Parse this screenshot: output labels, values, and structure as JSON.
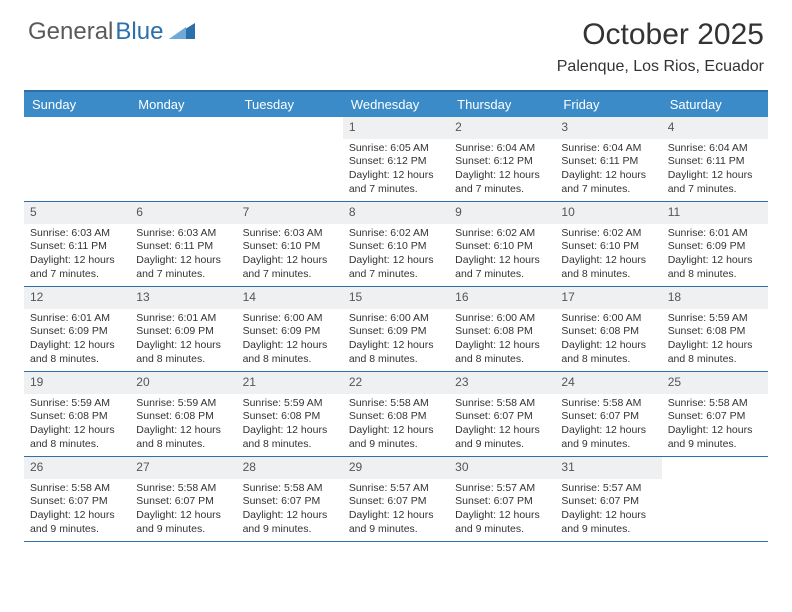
{
  "logo": {
    "text1": "General",
    "text2": "Blue"
  },
  "title": "October 2025",
  "location": "Palenque, Los Rios, Ecuador",
  "colors": {
    "header_bar": "#3b8bc8",
    "border": "#2b6fab",
    "daynum_bg": "#eef0f2",
    "text": "#333333",
    "logo_gray": "#5a5a5a",
    "logo_blue": "#2b6fab"
  },
  "day_headers": [
    "Sunday",
    "Monday",
    "Tuesday",
    "Wednesday",
    "Thursday",
    "Friday",
    "Saturday"
  ],
  "weeks": [
    [
      {
        "blank": true
      },
      {
        "blank": true
      },
      {
        "blank": true
      },
      {
        "n": "1",
        "sr": "6:05 AM",
        "ss": "6:12 PM",
        "dl": "12 hours and 7 minutes."
      },
      {
        "n": "2",
        "sr": "6:04 AM",
        "ss": "6:12 PM",
        "dl": "12 hours and 7 minutes."
      },
      {
        "n": "3",
        "sr": "6:04 AM",
        "ss": "6:11 PM",
        "dl": "12 hours and 7 minutes."
      },
      {
        "n": "4",
        "sr": "6:04 AM",
        "ss": "6:11 PM",
        "dl": "12 hours and 7 minutes."
      }
    ],
    [
      {
        "n": "5",
        "sr": "6:03 AM",
        "ss": "6:11 PM",
        "dl": "12 hours and 7 minutes."
      },
      {
        "n": "6",
        "sr": "6:03 AM",
        "ss": "6:11 PM",
        "dl": "12 hours and 7 minutes."
      },
      {
        "n": "7",
        "sr": "6:03 AM",
        "ss": "6:10 PM",
        "dl": "12 hours and 7 minutes."
      },
      {
        "n": "8",
        "sr": "6:02 AM",
        "ss": "6:10 PM",
        "dl": "12 hours and 7 minutes."
      },
      {
        "n": "9",
        "sr": "6:02 AM",
        "ss": "6:10 PM",
        "dl": "12 hours and 7 minutes."
      },
      {
        "n": "10",
        "sr": "6:02 AM",
        "ss": "6:10 PM",
        "dl": "12 hours and 8 minutes."
      },
      {
        "n": "11",
        "sr": "6:01 AM",
        "ss": "6:09 PM",
        "dl": "12 hours and 8 minutes."
      }
    ],
    [
      {
        "n": "12",
        "sr": "6:01 AM",
        "ss": "6:09 PM",
        "dl": "12 hours and 8 minutes."
      },
      {
        "n": "13",
        "sr": "6:01 AM",
        "ss": "6:09 PM",
        "dl": "12 hours and 8 minutes."
      },
      {
        "n": "14",
        "sr": "6:00 AM",
        "ss": "6:09 PM",
        "dl": "12 hours and 8 minutes."
      },
      {
        "n": "15",
        "sr": "6:00 AM",
        "ss": "6:09 PM",
        "dl": "12 hours and 8 minutes."
      },
      {
        "n": "16",
        "sr": "6:00 AM",
        "ss": "6:08 PM",
        "dl": "12 hours and 8 minutes."
      },
      {
        "n": "17",
        "sr": "6:00 AM",
        "ss": "6:08 PM",
        "dl": "12 hours and 8 minutes."
      },
      {
        "n": "18",
        "sr": "5:59 AM",
        "ss": "6:08 PM",
        "dl": "12 hours and 8 minutes."
      }
    ],
    [
      {
        "n": "19",
        "sr": "5:59 AM",
        "ss": "6:08 PM",
        "dl": "12 hours and 8 minutes."
      },
      {
        "n": "20",
        "sr": "5:59 AM",
        "ss": "6:08 PM",
        "dl": "12 hours and 8 minutes."
      },
      {
        "n": "21",
        "sr": "5:59 AM",
        "ss": "6:08 PM",
        "dl": "12 hours and 8 minutes."
      },
      {
        "n": "22",
        "sr": "5:58 AM",
        "ss": "6:08 PM",
        "dl": "12 hours and 9 minutes."
      },
      {
        "n": "23",
        "sr": "5:58 AM",
        "ss": "6:07 PM",
        "dl": "12 hours and 9 minutes."
      },
      {
        "n": "24",
        "sr": "5:58 AM",
        "ss": "6:07 PM",
        "dl": "12 hours and 9 minutes."
      },
      {
        "n": "25",
        "sr": "5:58 AM",
        "ss": "6:07 PM",
        "dl": "12 hours and 9 minutes."
      }
    ],
    [
      {
        "n": "26",
        "sr": "5:58 AM",
        "ss": "6:07 PM",
        "dl": "12 hours and 9 minutes."
      },
      {
        "n": "27",
        "sr": "5:58 AM",
        "ss": "6:07 PM",
        "dl": "12 hours and 9 minutes."
      },
      {
        "n": "28",
        "sr": "5:58 AM",
        "ss": "6:07 PM",
        "dl": "12 hours and 9 minutes."
      },
      {
        "n": "29",
        "sr": "5:57 AM",
        "ss": "6:07 PM",
        "dl": "12 hours and 9 minutes."
      },
      {
        "n": "30",
        "sr": "5:57 AM",
        "ss": "6:07 PM",
        "dl": "12 hours and 9 minutes."
      },
      {
        "n": "31",
        "sr": "5:57 AM",
        "ss": "6:07 PM",
        "dl": "12 hours and 9 minutes."
      },
      {
        "blank": true
      }
    ]
  ],
  "labels": {
    "sunrise": "Sunrise:",
    "sunset": "Sunset:",
    "daylight": "Daylight:"
  }
}
